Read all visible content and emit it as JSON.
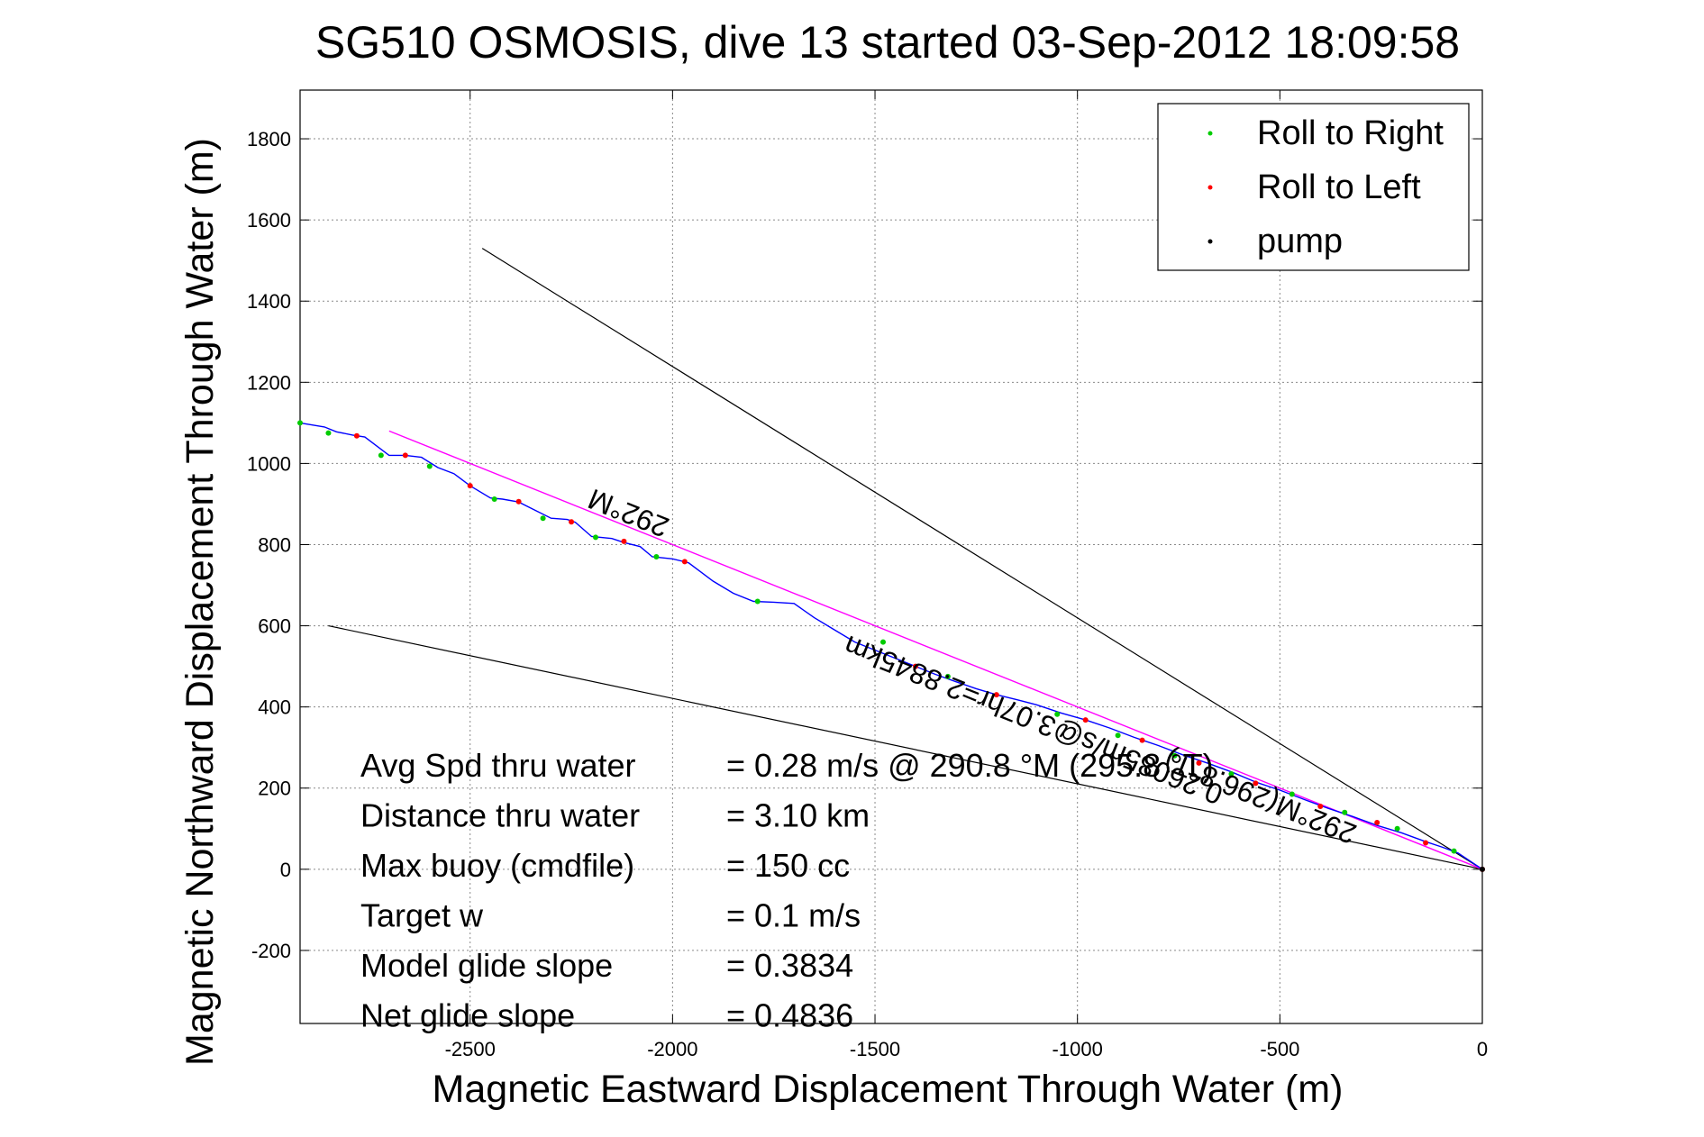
{
  "chart_data": {
    "type": "line",
    "title": "SG510 OSMOSIS, dive 13 started 03-Sep-2012 18:09:58",
    "xlabel": "Magnetic Eastward Displacement Through Water (m)",
    "ylabel": "Magnetic Northward Displacement Through Water (m)",
    "xlim": [
      -2920,
      0
    ],
    "ylim": [
      -380,
      1920
    ],
    "xticks": [
      -2500,
      -2000,
      -1500,
      -1000,
      -500,
      0
    ],
    "yticks": [
      -200,
      0,
      200,
      400,
      600,
      800,
      1000,
      1200,
      1400,
      1600,
      1800
    ],
    "grid": true,
    "legend_position": "top-right",
    "colors": {
      "track": "#0000ff",
      "roll_right": "#00cc00",
      "roll_left": "#ff0000",
      "pump": "#000000",
      "heading_line": "#ff00ff",
      "bounds": "#000000"
    },
    "legend": [
      {
        "label": "Roll to Right",
        "color": "#00cc00"
      },
      {
        "label": "Roll to Left",
        "color": "#ff0000"
      },
      {
        "label": "pump",
        "color": "#000000"
      }
    ],
    "track": {
      "x": [
        0,
        -60,
        -100,
        -140,
        -200,
        -260,
        -320,
        -380,
        -440,
        -500,
        -560,
        -620,
        -680,
        -740,
        -800,
        -860,
        -920,
        -980,
        -1040,
        -1100,
        -1150,
        -1200,
        -1250,
        -1300,
        -1350,
        -1400,
        -1450,
        -1500,
        -1550,
        -1600,
        -1650,
        -1700,
        -1750,
        -1800,
        -1850,
        -1900,
        -1960,
        -1980,
        -2000,
        -2050,
        -2080,
        -2120,
        -2150,
        -2200,
        -2240,
        -2260,
        -2300,
        -2340,
        -2380,
        -2420,
        -2450,
        -2500,
        -2540,
        -2580,
        -2620,
        -2660,
        -2700,
        -2760,
        -2790,
        -2830,
        -2860,
        -2920
      ],
      "y": [
        0,
        40,
        55,
        68,
        90,
        108,
        130,
        150,
        172,
        195,
        215,
        240,
        262,
        282,
        305,
        325,
        348,
        368,
        385,
        405,
        418,
        430,
        445,
        462,
        480,
        500,
        520,
        540,
        560,
        590,
        620,
        655,
        658,
        660,
        680,
        710,
        755,
        760,
        765,
        770,
        795,
        805,
        815,
        820,
        855,
        862,
        865,
        885,
        905,
        912,
        915,
        945,
        975,
        990,
        1015,
        1020,
        1020,
        1065,
        1070,
        1078,
        1090,
        1100
      ]
    },
    "roll_right": {
      "x": [
        -70,
        -210,
        -340,
        -470,
        -620,
        -760,
        -900,
        -1050,
        -1320,
        -1480,
        -1790,
        -2040,
        -2190,
        -2320,
        -2440,
        -2600,
        -2720,
        -2850,
        -2920
      ],
      "y": [
        45,
        100,
        140,
        185,
        235,
        280,
        330,
        382,
        475,
        560,
        660,
        770,
        818,
        865,
        912,
        993,
        1020,
        1075,
        1100
      ]
    },
    "roll_left": {
      "x": [
        0,
        -140,
        -260,
        -400,
        -560,
        -700,
        -840,
        -980,
        -1200,
        -1400,
        -1970,
        -2120,
        -2250,
        -2380,
        -2500,
        -2660,
        -2780
      ],
      "y": [
        0,
        65,
        115,
        155,
        212,
        262,
        318,
        368,
        430,
        500,
        758,
        808,
        856,
        906,
        945,
        1020,
        1068
      ]
    },
    "pump": {
      "x": [
        0
      ],
      "y": [
        0
      ]
    },
    "heading_line": {
      "x": [
        0,
        -2700
      ],
      "y": [
        0,
        1080
      ]
    },
    "bound_upper": {
      "x": [
        0,
        -2470
      ],
      "y": [
        0,
        1530
      ]
    },
    "bound_lower": {
      "x": [
        0,
        -2850
      ],
      "y": [
        0,
        600
      ]
    },
    "annotations": [
      {
        "text": "292°M",
        "x": -2100,
        "y": 900,
        "rotate": 202
      },
      {
        "text": "0.26085m/s@3.07hr=2.8845km",
        "x": -1100,
        "y": 390,
        "rotate": 202
      },
      {
        "text": "292°M(296.8°T)",
        "x": -540,
        "y": 200,
        "rotate": 202
      }
    ],
    "stats": [
      {
        "label": "Avg Spd thru water",
        "value": "=  0.28 m/s @ 290.8 °M (295.8 °T)"
      },
      {
        "label": "Distance thru water",
        "value": "=  3.10 km"
      },
      {
        "label": "Max buoy (cmdfile)",
        "value": "= 150 cc"
      },
      {
        "label": "Target w",
        "value": "= 0.1 m/s"
      },
      {
        "label": "Model glide slope",
        "value": "= 0.3834"
      },
      {
        "label": "Net glide slope",
        "value": "= 0.4836"
      }
    ]
  }
}
